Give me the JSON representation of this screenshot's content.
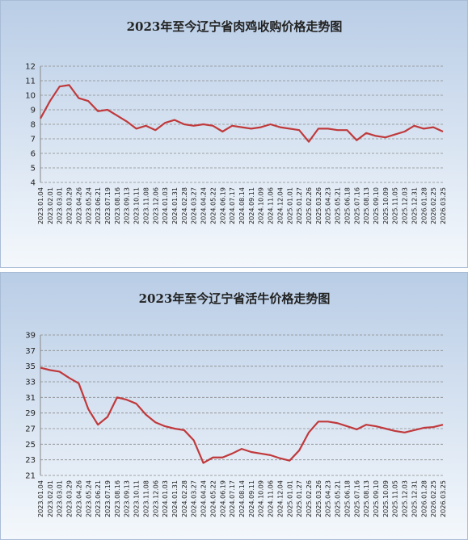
{
  "chart_data": [
    {
      "type": "line",
      "title": "2023年至今辽宁省肉鸡收购价格走势图",
      "categories": [
        "2023.01.04",
        "2023.02.01",
        "2023.03.01",
        "2023.03.29",
        "2023.04.26",
        "2023.05.24",
        "2023.06.21",
        "2023.07.19",
        "2023.08.16",
        "2023.09.13",
        "2023.10.11",
        "2023.11.08",
        "2023.12.06",
        "2024.01.03",
        "2024.01.31",
        "2024.02.28",
        "2024.03.27",
        "2024.04.24",
        "2024.05.22",
        "2024.06.19",
        "2024.07.17",
        "2024.08.14",
        "2024.09.11",
        "2024.10.09",
        "2024.11.06",
        "2024.12.04",
        "2025.01.01",
        "2025.01.27",
        "2025.02.26",
        "2025.03.26",
        "2025.04.23",
        "2025.05.21",
        "2025.06.18",
        "2025.07.16",
        "2025.08.13",
        "2025.09.10",
        "2025.10.09",
        "2025.11.05",
        "2025.12.03",
        "2025.12.31",
        "2026.01.28",
        "2026.02.25",
        "2026.03.25"
      ],
      "values": [
        8.4,
        9.6,
        10.6,
        10.7,
        9.8,
        9.6,
        8.9,
        9.0,
        8.6,
        8.2,
        7.7,
        7.9,
        7.6,
        8.1,
        8.3,
        8.0,
        7.9,
        8.0,
        7.9,
        7.5,
        7.9,
        7.8,
        7.7,
        7.8,
        8.0,
        7.8,
        7.7,
        7.6,
        6.8,
        7.7,
        7.7,
        7.6,
        7.6,
        6.9,
        7.4,
        7.2,
        7.1,
        7.3,
        7.5,
        7.9,
        7.7,
        7.8,
        7.5
      ],
      "color": "#c0393b",
      "ylim": [
        4,
        12
      ],
      "yticks": [
        4,
        5,
        6,
        7,
        8,
        9,
        10,
        11,
        12
      ],
      "grid": true
    },
    {
      "type": "line",
      "title": "2023年至今辽宁省活牛价格走势图",
      "categories": [
        "2023.01.04",
        "2023.02.01",
        "2023.03.01",
        "2023.03.29",
        "2023.04.26",
        "2023.05.24",
        "2023.06.21",
        "2023.07.19",
        "2023.08.16",
        "2023.09.13",
        "2023.10.11",
        "2023.11.08",
        "2023.12.06",
        "2024.01.03",
        "2024.01.31",
        "2024.02.28",
        "2024.03.27",
        "2024.04.24",
        "2024.05.22",
        "2024.06.19",
        "2024.07.17",
        "2024.08.14",
        "2024.09.11",
        "2024.10.09",
        "2024.11.06",
        "2024.12.04",
        "2025.01.01",
        "2025.01.27",
        "2025.02.26",
        "2025.03.26",
        "2025.04.23",
        "2025.05.21",
        "2025.06.18",
        "2025.07.16",
        "2025.08.13",
        "2025.09.10",
        "2025.10.09",
        "2025.11.05",
        "2025.12.03",
        "2025.12.31",
        "2026.01.28",
        "2026.02.25",
        "2026.03.25"
      ],
      "values": [
        34.8,
        34.5,
        34.3,
        33.5,
        32.8,
        29.5,
        27.5,
        28.5,
        31.0,
        30.7,
        30.2,
        28.8,
        27.8,
        27.3,
        27.0,
        26.8,
        25.5,
        22.6,
        23.3,
        23.3,
        23.8,
        24.4,
        24.0,
        23.8,
        23.6,
        23.2,
        22.9,
        24.2,
        26.5,
        27.9,
        27.9,
        27.7,
        27.3,
        26.9,
        27.5,
        27.3,
        27.0,
        26.7,
        26.5,
        26.8,
        27.1,
        27.2,
        27.5
      ],
      "color": "#c0393b",
      "ylim": [
        21,
        39
      ],
      "yticks": [
        21,
        23,
        25,
        27,
        29,
        31,
        33,
        35,
        37,
        39
      ],
      "grid": true
    }
  ]
}
